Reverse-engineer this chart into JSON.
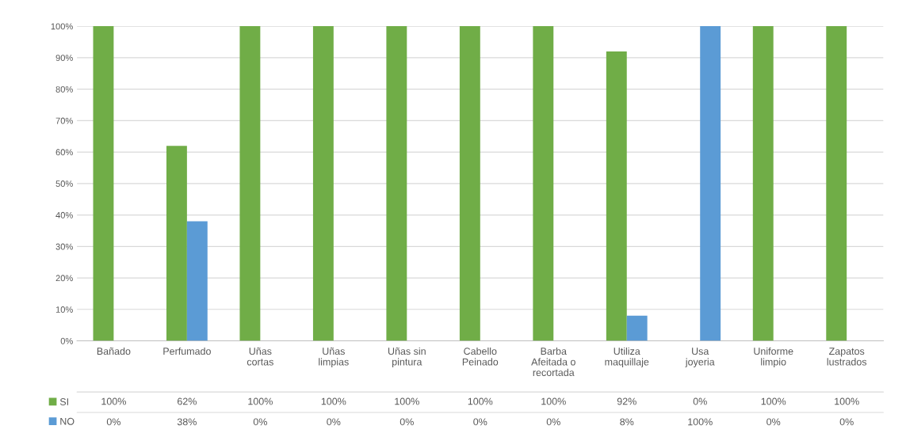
{
  "chart_data": {
    "type": "bar",
    "categories": [
      "Bañado",
      "Perfumado",
      "Uñas cortas",
      "Uñas limpias",
      "Uñas sin pintura",
      "Cabello Peinado",
      "Barba Afeitada o recortada",
      "Utiliza maquillaje",
      "Usa joyeria",
      "Uniforme limpio",
      "Zapatos lustrados"
    ],
    "series": [
      {
        "name": "SI",
        "color": "#70ad47",
        "values": [
          100,
          62,
          100,
          100,
          100,
          100,
          100,
          92,
          0,
          100,
          100
        ],
        "value_labels": [
          "100%",
          "62%",
          "100%",
          "100%",
          "100%",
          "100%",
          "100%",
          "92%",
          "0%",
          "100%",
          "100%"
        ]
      },
      {
        "name": "NO",
        "color": "#5b9bd5",
        "values": [
          0,
          38,
          0,
          0,
          0,
          0,
          0,
          8,
          100,
          0,
          0
        ],
        "value_labels": [
          "0%",
          "38%",
          "0%",
          "0%",
          "0%",
          "0%",
          "0%",
          "8%",
          "100%",
          "0%",
          "0%"
        ]
      }
    ],
    "ylim": [
      0,
      100
    ],
    "yticks": [
      {
        "value": 0,
        "label": "0%"
      },
      {
        "value": 10,
        "label": "10%"
      },
      {
        "value": 20,
        "label": "20%"
      },
      {
        "value": 30,
        "label": "30%"
      },
      {
        "value": 40,
        "label": "40%"
      },
      {
        "value": 50,
        "label": "50%"
      },
      {
        "value": 60,
        "label": "60%"
      },
      {
        "value": 70,
        "label": "70%"
      },
      {
        "value": 80,
        "label": "80%"
      },
      {
        "value": 90,
        "label": "90%"
      },
      {
        "value": 100,
        "label": "100%"
      }
    ],
    "grid": "y",
    "legend": "bottom left"
  }
}
